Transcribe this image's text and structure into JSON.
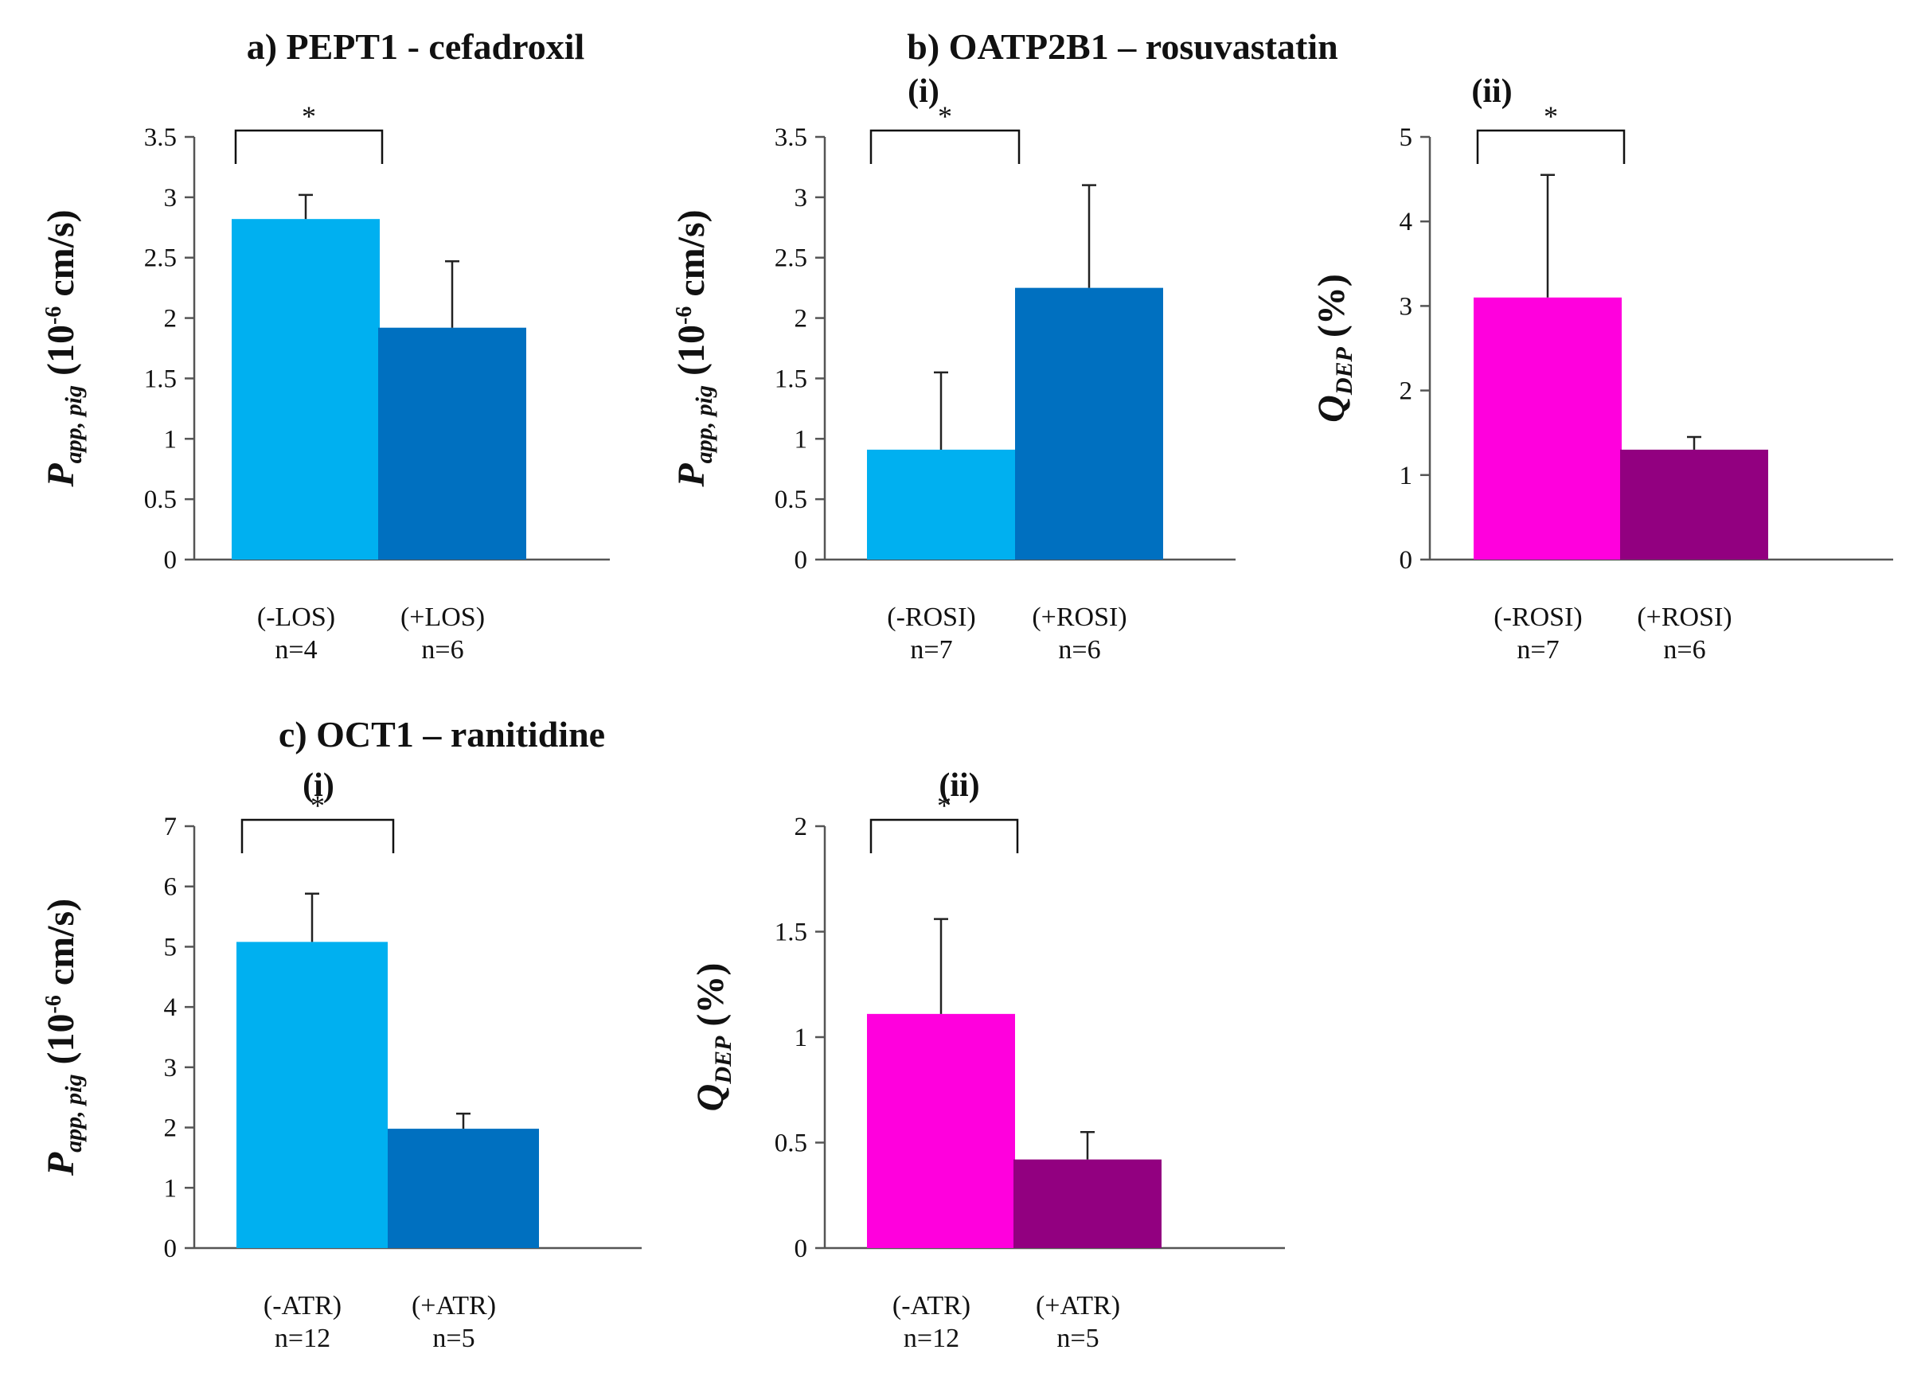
{
  "panel_titles": {
    "a": "a) PEPT1 - cefadroxil",
    "b": "b) OATP2B1 – rosuvastatin",
    "c": "c) OCT1 – ranitidine"
  },
  "colors": {
    "light_blue": "#00B0F0",
    "dark_blue": "#0070C0",
    "magenta": "#FF00DD",
    "purple": "#920080"
  },
  "chart_data": [
    {
      "id": "a",
      "type": "bar",
      "sublabel": "",
      "title": "a) PEPT1 - cefadroxil",
      "ylabel": {
        "main": "P",
        "sub": "app, pig",
        "rest": " (10",
        "sup": "-6",
        "unit": " cm/s)"
      },
      "ylim": [
        0,
        3.5
      ],
      "yticks": [
        "0",
        "0.5",
        "1",
        "1.5",
        "2",
        "2.5",
        "3",
        "3.5"
      ],
      "categories": [
        {
          "label": "(-LOS)",
          "n": "n=4"
        },
        {
          "label": "(+LOS)",
          "n": "n=6"
        }
      ],
      "values": [
        2.82,
        1.92
      ],
      "errors": [
        0.2,
        0.55
      ],
      "colors": [
        "#00B0F0",
        "#0070C0"
      ],
      "significance": "*"
    },
    {
      "id": "b_i",
      "type": "bar",
      "sublabel": "(i)",
      "title": "b) OATP2B1 – rosuvastatin",
      "ylabel": {
        "main": "P",
        "sub": "app, pig",
        "rest": " (10",
        "sup": "-6",
        "unit": " cm/s)"
      },
      "ylim": [
        0,
        3.5
      ],
      "yticks": [
        "0",
        "0.5",
        "1",
        "1.5",
        "2",
        "2.5",
        "3",
        "3.5"
      ],
      "categories": [
        {
          "label": "(-ROSI)",
          "n": "n=7"
        },
        {
          "label": "(+ROSI)",
          "n": "n=6"
        }
      ],
      "values": [
        0.91,
        2.25
      ],
      "errors": [
        0.64,
        0.85
      ],
      "colors": [
        "#00B0F0",
        "#0070C0"
      ],
      "significance": "*"
    },
    {
      "id": "b_ii",
      "type": "bar",
      "sublabel": "(ii)",
      "title": "",
      "ylabel": {
        "main": "Q",
        "sub": "DEP",
        "rest": " (%)",
        "sup": "",
        "unit": ""
      },
      "ylim": [
        0,
        5
      ],
      "yticks": [
        "0",
        "1",
        "2",
        "3",
        "4",
        "5"
      ],
      "categories": [
        {
          "label": "(-ROSI)",
          "n": "n=7"
        },
        {
          "label": "(+ROSI)",
          "n": "n=6"
        }
      ],
      "values": [
        3.1,
        1.3
      ],
      "errors": [
        1.45,
        0.15
      ],
      "colors": [
        "#FF00DD",
        "#920080"
      ],
      "significance": "*"
    },
    {
      "id": "c_i",
      "type": "bar",
      "sublabel": "(i)",
      "title": "c) OCT1 – ranitidine",
      "ylabel": {
        "main": "P",
        "sub": "app, pig",
        "rest": " (10",
        "sup": "-6",
        "unit": " cm/s)"
      },
      "ylim": [
        0,
        7
      ],
      "yticks": [
        "0",
        "1",
        "2",
        "3",
        "4",
        "5",
        "6",
        "7"
      ],
      "categories": [
        {
          "label": "(-ATR)",
          "n": "n=12"
        },
        {
          "label": "(+ATR)",
          "n": "n=5"
        }
      ],
      "values": [
        5.08,
        1.98
      ],
      "errors": [
        0.8,
        0.25
      ],
      "colors": [
        "#00B0F0",
        "#0070C0"
      ],
      "significance": "*"
    },
    {
      "id": "c_ii",
      "type": "bar",
      "sublabel": "(ii)",
      "title": "",
      "ylabel": {
        "main": "Q",
        "sub": "DEP",
        "rest": " (%)",
        "sup": "",
        "unit": ""
      },
      "ylim": [
        0,
        2
      ],
      "yticks": [
        "0",
        "0.5",
        "1",
        "1.5",
        "2"
      ],
      "categories": [
        {
          "label": "(-ATR)",
          "n": "n=12"
        },
        {
          "label": "(+ATR)",
          "n": "n=5"
        }
      ],
      "values": [
        1.11,
        0.42
      ],
      "errors": [
        0.45,
        0.13
      ],
      "colors": [
        "#FF00DD",
        "#920080"
      ],
      "significance": "*"
    }
  ]
}
